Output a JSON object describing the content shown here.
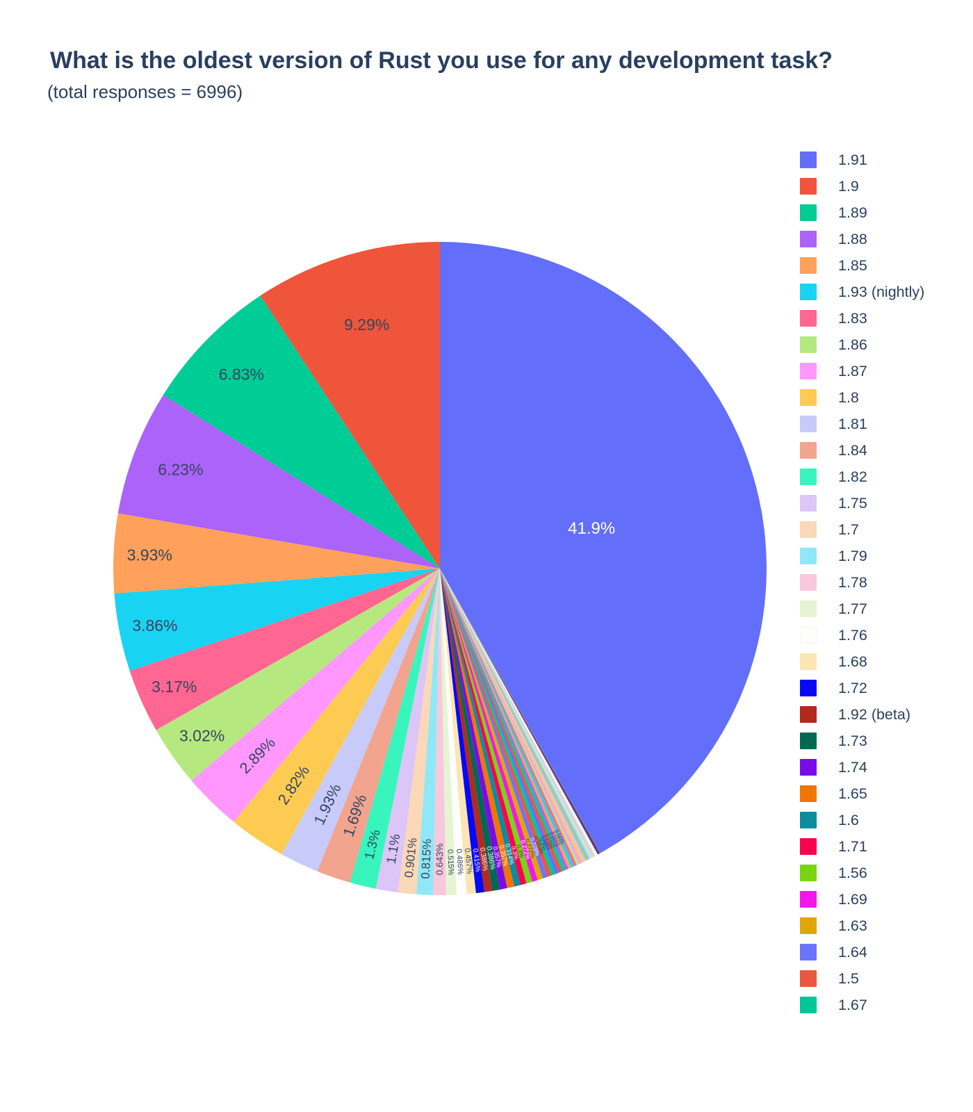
{
  "title": "What is the oldest version of Rust you use for any development task?",
  "subtitle": "(total responses = 6996)",
  "total_responses": 6996,
  "text_colors": {
    "inside_dark": "#35455e",
    "navy": "#2a3f5f"
  },
  "chart_data": {
    "type": "pie",
    "title": "What is the oldest version of Rust you use for any development task?",
    "subtitle": "(total responses = 6996)",
    "legend_position": "right",
    "legend_truncated": true,
    "slices": [
      {
        "label": "1.91",
        "value": 41.9,
        "pct_label": "41.9%",
        "color": "#636EFA",
        "label_style": "inside-white"
      },
      {
        "label": "1.9",
        "value": 9.29,
        "pct_label": "9.29%",
        "color": "#EF553B",
        "label_style": "inside-dark"
      },
      {
        "label": "1.89",
        "value": 6.83,
        "pct_label": "6.83%",
        "color": "#00CC96",
        "label_style": "inside-dark"
      },
      {
        "label": "1.88",
        "value": 6.23,
        "pct_label": "6.23%",
        "color": "#AB63FA",
        "label_style": "inside-dark"
      },
      {
        "label": "1.85",
        "value": 3.93,
        "pct_label": "3.93%",
        "color": "#FFA15A",
        "label_style": "inside-dark"
      },
      {
        "label": "1.93 (nightly)",
        "value": 3.86,
        "pct_label": "3.86%",
        "color": "#19D3F3",
        "label_style": "inside-dark"
      },
      {
        "label": "1.83",
        "value": 3.17,
        "pct_label": "3.17%",
        "color": "#FF6692",
        "label_style": "inside-dark"
      },
      {
        "label": "1.86",
        "value": 3.02,
        "pct_label": "3.02%",
        "color": "#B6E880",
        "label_style": "inside-dark"
      },
      {
        "label": "1.87",
        "value": 2.89,
        "pct_label": "2.89%",
        "color": "#FF97FF",
        "label_style": "inside-dark"
      },
      {
        "label": "1.8",
        "value": 2.82,
        "pct_label": "2.82%",
        "color": "#FECB52",
        "label_style": "inside-dark"
      },
      {
        "label": "1.81",
        "value": 1.93,
        "pct_label": "1.93%",
        "color": "#C8CBF9",
        "label_style": "inside-dark"
      },
      {
        "label": "1.84",
        "value": 1.69,
        "pct_label": "1.69%",
        "color": "#F2A48F",
        "label_style": "inside-dark"
      },
      {
        "label": "1.82",
        "value": 1.3,
        "pct_label": "1.3%",
        "color": "#38F5BE",
        "label_style": "inside-dark"
      },
      {
        "label": "1.75",
        "value": 1.1,
        "pct_label": "1.1%",
        "color": "#DCC5F7",
        "label_style": "inside-dark"
      },
      {
        "label": "1.7",
        "value": 0.901,
        "pct_label": "0.901%",
        "color": "#FBD8B8",
        "label_style": "inside-dark"
      },
      {
        "label": "1.79",
        "value": 0.815,
        "pct_label": "0.815%",
        "color": "#8FE8F7",
        "label_style": "inside-dark"
      },
      {
        "label": "1.78",
        "value": 0.643,
        "pct_label": "0.643%",
        "color": "#F8C8DB",
        "label_style": "inside-dark"
      },
      {
        "label": "1.77",
        "value": 0.515,
        "pct_label": "0.515%",
        "color": "#E6F4D4",
        "label_style": "inside-dark"
      },
      {
        "label": "1.76",
        "value": 0.486,
        "pct_label": "0.486%",
        "color": "#FDFDFB",
        "label_style": "inside-dark"
      },
      {
        "label": "1.68",
        "value": 0.457,
        "pct_label": "0.457%",
        "color": "#FCE5B2",
        "label_style": "inside-dark"
      },
      {
        "label": "1.72",
        "value": 0.415,
        "pct_label": "0.415%",
        "color": "#0509F5",
        "label_style": "inside-white"
      },
      {
        "label": "1.92 (beta)",
        "value": 0.386,
        "pct_label": "0.386%",
        "color": "#B2291D",
        "label_style": "inside-white"
      },
      {
        "label": "1.73",
        "value": 0.386,
        "pct_label": "0.386%",
        "color": "#016853",
        "label_style": "inside-white"
      },
      {
        "label": "1.74",
        "value": 0.357,
        "pct_label": "0.357%",
        "color": "#7A0BE8",
        "label_style": "inside-white"
      },
      {
        "label": "1.65",
        "value": 0.357,
        "pct_label": "0.357%",
        "color": "#F27405",
        "label_style": "inside-white"
      },
      {
        "label": "1.6",
        "value": 0.314,
        "pct_label": "0.314%",
        "color": "#0D8C9E",
        "label_style": "inside-white"
      },
      {
        "label": "1.71",
        "value": 0.3,
        "pct_label": "0.3%",
        "color": "#F7054F",
        "label_style": "inside-white"
      },
      {
        "label": "1.56",
        "value": 0.3,
        "pct_label": "0.3%",
        "color": "#79D413",
        "label_style": "inside-dark"
      },
      {
        "label": "1.69",
        "value": 0.272,
        "pct_label": "0.272%",
        "color": "#F316EB",
        "label_style": "inside-white"
      },
      {
        "label": "1.63",
        "value": 0.272,
        "pct_label": "0.272%",
        "color": "#E0A50A",
        "label_style": "inside-dark"
      },
      {
        "label": "1.64",
        "value": 0.229,
        "pct_label": "0.229%",
        "color": "#6B74FB",
        "label_style": "inside-white"
      },
      {
        "label": "1.5",
        "value": 0.214,
        "pct_label": "0.214%",
        "color": "#E9573F",
        "label_style": "inside-dark"
      },
      {
        "label": "1.67",
        "value": 0.2,
        "pct_label": "0.2%",
        "color": "#00C795",
        "label_style": "inside-dark"
      }
    ],
    "unlabeled_tail": {
      "note": "fan of additional very small slices (<0.2%) between the 1.67 slice and the large 1.91 slice; their legend entries are clipped off-screen",
      "values": [
        0.186,
        0.172,
        0.172,
        0.157,
        0.157,
        0.143,
        0.143,
        0.129,
        0.129,
        0.114,
        0.114,
        0.1,
        0.1,
        0.086,
        0.086,
        0.071,
        0.071,
        0.057,
        0.057,
        0.043,
        0.043,
        0.029,
        0.029,
        0.029,
        0.014,
        0.014
      ],
      "labels_shown": [
        "0.186%",
        "0.172%",
        "0.172%",
        "0.157%",
        "0.157%",
        "0.143%"
      ],
      "colors": [
        "#636EFA",
        "#EF553B",
        "#00CC96",
        "#AB63FA",
        "#FFA15A",
        "#19D3F3",
        "#FF6692",
        "#B6E880",
        "#FF97FF",
        "#FECB52",
        "#C8CBF9",
        "#F2A48F",
        "#38F5BE",
        "#DCC5F7",
        "#FBD8B8",
        "#8FE8F7",
        "#F8C8DB",
        "#E6F4D4",
        "#FDFDFB",
        "#FCE5B2",
        "#0509F5",
        "#B2291D",
        "#016853",
        "#7A0BE8",
        "#F27405",
        "#0D8C9E"
      ]
    },
    "layout_hints": {
      "first_slice_direction": "clockwise-from-top",
      "others_direction": "counterclockwise-from-top"
    }
  }
}
